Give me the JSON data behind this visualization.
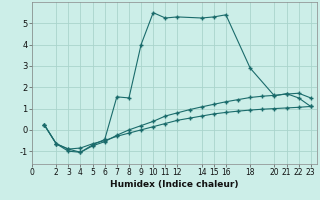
{
  "title": "",
  "xlabel": "Humidex (Indice chaleur)",
  "bg_color": "#cceee8",
  "grid_color": "#aad4cc",
  "line_color": "#1a6b6b",
  "xlim": [
    0,
    23.5
  ],
  "ylim": [
    -1.6,
    6.0
  ],
  "xticks": [
    0,
    2,
    3,
    4,
    5,
    6,
    7,
    8,
    9,
    10,
    11,
    12,
    14,
    15,
    16,
    18,
    20,
    21,
    22,
    23
  ],
  "yticks": [
    -1,
    0,
    1,
    2,
    3,
    4,
    5
  ],
  "curve1_x": [
    1,
    2,
    3,
    4,
    5,
    6,
    7,
    8,
    9,
    10,
    11,
    12,
    13,
    14,
    15,
    16,
    17,
    18,
    19,
    20,
    21,
    22,
    23
  ],
  "curve1_y": [
    0.25,
    -0.65,
    -0.9,
    -0.85,
    -0.65,
    -0.5,
    -0.3,
    -0.15,
    0.0,
    0.15,
    0.3,
    0.45,
    0.55,
    0.65,
    0.75,
    0.82,
    0.88,
    0.93,
    0.97,
    1.0,
    1.03,
    1.06,
    1.1
  ],
  "curve2_x": [
    1,
    2,
    3,
    4,
    5,
    6,
    7,
    8,
    9,
    10,
    11,
    12,
    13,
    14,
    15,
    16,
    17,
    18,
    19,
    20,
    21,
    22,
    23
  ],
  "curve2_y": [
    0.25,
    -0.65,
    -1.0,
    -1.05,
    -0.75,
    -0.55,
    -0.25,
    0.0,
    0.2,
    0.4,
    0.65,
    0.8,
    0.95,
    1.08,
    1.2,
    1.32,
    1.42,
    1.52,
    1.58,
    1.62,
    1.68,
    1.72,
    1.5
  ],
  "curve3_x": [
    1,
    2,
    3,
    4,
    5,
    6,
    7,
    8,
    9,
    10,
    11,
    12,
    14,
    15,
    16,
    18,
    20,
    21,
    22,
    23
  ],
  "curve3_y": [
    0.25,
    -0.65,
    -0.9,
    -1.05,
    -0.7,
    -0.45,
    1.55,
    1.5,
    4.0,
    5.5,
    5.25,
    5.3,
    5.25,
    5.3,
    5.4,
    2.9,
    1.6,
    1.7,
    1.5,
    1.1
  ],
  "marker": "+"
}
